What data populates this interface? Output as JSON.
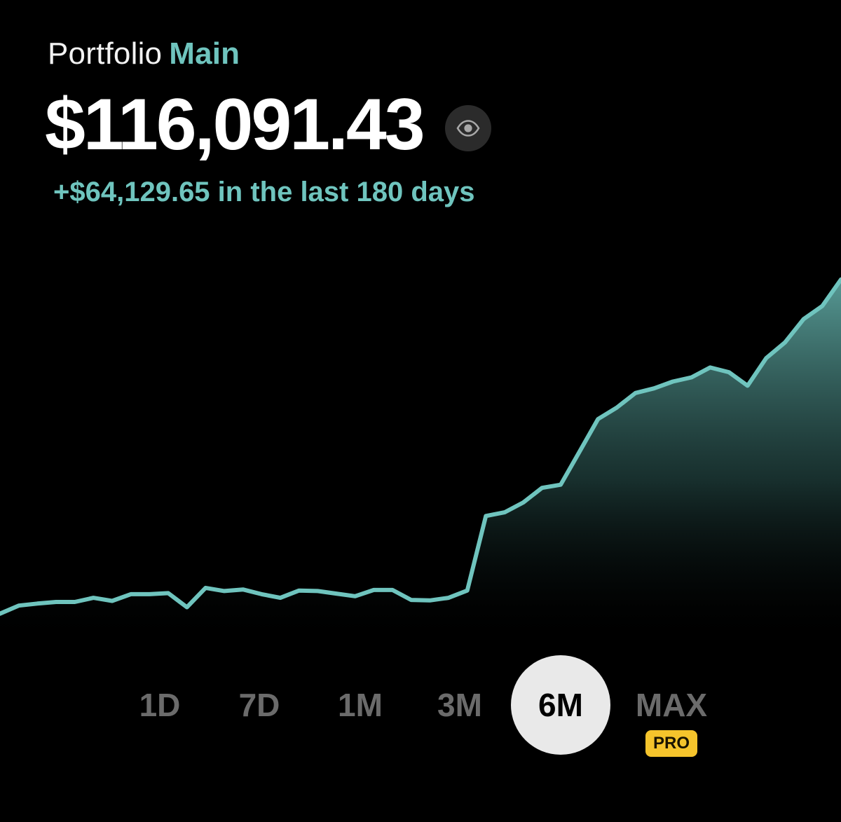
{
  "header": {
    "portfolio_label": "Portfolio",
    "portfolio_name": "Main",
    "balance": "$116,091.43",
    "change_text": "+$64,129.65 in the last 180 days"
  },
  "icons": {
    "visibility": "eye-icon"
  },
  "colors": {
    "accent": "#6fc4be",
    "background": "#000000",
    "pro_badge": "#f5c42c",
    "active_range_bg": "#e9e9e9",
    "inactive_range_text": "#6b6b6b"
  },
  "time_ranges": [
    {
      "label": "1D",
      "active": false
    },
    {
      "label": "7D",
      "active": false
    },
    {
      "label": "1M",
      "active": false
    },
    {
      "label": "3M",
      "active": false
    },
    {
      "label": "6M",
      "active": true
    },
    {
      "label": "MAX",
      "active": false,
      "badge": "PRO"
    }
  ],
  "chart_data": {
    "type": "area",
    "ylim": [
      46000,
      124000
    ],
    "grid": false,
    "x": [
      0,
      4,
      8,
      12,
      16,
      20,
      24,
      28,
      32,
      36,
      40,
      44,
      48,
      52,
      56,
      60,
      64,
      68,
      72,
      76,
      80,
      84,
      88,
      92,
      96,
      100,
      104,
      108,
      112,
      116,
      120,
      124,
      128,
      132,
      136,
      140,
      144,
      148,
      152,
      156,
      160,
      164,
      168,
      172,
      176,
      180
    ],
    "values": [
      51962,
      53500,
      53900,
      54200,
      54200,
      55000,
      54400,
      55700,
      55700,
      55900,
      53200,
      56900,
      56300,
      56600,
      55700,
      55000,
      56400,
      56300,
      55800,
      55300,
      56500,
      56500,
      54600,
      54500,
      55000,
      56400,
      70700,
      71400,
      73300,
      76100,
      76700,
      83000,
      89300,
      91500,
      94300,
      95200,
      96500,
      97300,
      99200,
      98300,
      95700,
      101000,
      104000,
      108500,
      111000,
      116091
    ]
  }
}
